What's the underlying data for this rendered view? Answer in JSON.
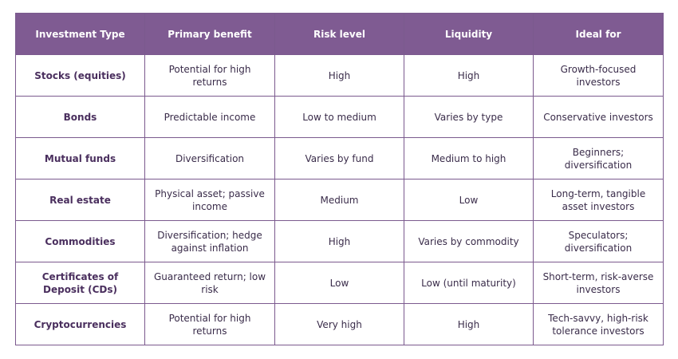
{
  "colors": {
    "header_bg": "#7f5b92",
    "header_text": "#ffffff",
    "border": "#7b5a8e",
    "body_text": "#3a2c4a",
    "first_col_text": "#4a2f5e"
  },
  "table": {
    "headers": [
      "Investment Type",
      "Primary benefit",
      "Risk level",
      "Liquidity",
      "Ideal for"
    ],
    "rows": [
      [
        "Stocks (equities)",
        "Potential for high returns",
        "High",
        "High",
        "Growth-focused investors"
      ],
      [
        "Bonds",
        "Predictable income",
        "Low to medium",
        "Varies by type",
        "Conservative investors"
      ],
      [
        "Mutual funds",
        "Diversification",
        "Varies by fund",
        "Medium to high",
        "Beginners; diversification"
      ],
      [
        "Real estate",
        "Physical asset; passive income",
        "Medium",
        "Low",
        "Long-term, tangible asset investors"
      ],
      [
        "Commodities",
        "Diversification; hedge against inflation",
        "High",
        "Varies by commodity",
        "Speculators; diversification"
      ],
      [
        "Certificates of Deposit (CDs)",
        "Guaranteed return; low risk",
        "Low",
        "Low (until maturity)",
        "Short-term, risk-averse investors"
      ],
      [
        "Cryptocurrencies",
        "Potential for high returns",
        "Very high",
        "High",
        "Tech-savvy, high-risk tolerance investors"
      ]
    ]
  }
}
